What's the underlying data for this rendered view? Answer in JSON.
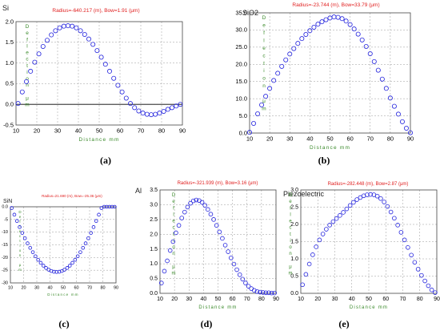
{
  "captions": [
    "(a)",
    "(b)",
    "(c)",
    "(d)",
    "(e)"
  ],
  "chart_data": [
    {
      "type": "scatter",
      "title": "Si",
      "subtitle": "Radius=-640.217 (m), Bow=1.91 (μm)",
      "xlabel": "Distance mm",
      "ylabel": "Deflection μm",
      "xlim": [
        10,
        90
      ],
      "ylim": [
        -0.5,
        2.0
      ],
      "xticks": [
        10,
        20,
        30,
        40,
        50,
        60,
        70,
        80,
        90
      ],
      "yticks": [
        -0.5,
        0.0,
        0.5,
        1.0,
        1.5,
        2.0
      ],
      "ytick_labels": [
        "-0.5",
        "0.0",
        "0.5",
        "1.0",
        "1.5",
        "2.0"
      ],
      "zero_line": true,
      "grid": true,
      "series": [
        {
          "color": "#2222dd",
          "x": [
            11,
            13,
            15,
            17,
            19,
            21,
            23,
            25,
            27,
            29,
            31,
            33,
            35,
            37,
            39,
            41,
            43,
            45,
            47,
            49,
            51,
            53,
            55,
            57,
            59,
            61,
            63,
            65,
            67,
            69,
            71,
            73,
            75,
            77,
            79,
            81,
            83,
            85,
            87,
            89
          ],
          "y": [
            0.02,
            0.3,
            0.55,
            0.8,
            1.02,
            1.22,
            1.4,
            1.55,
            1.68,
            1.78,
            1.85,
            1.89,
            1.9,
            1.89,
            1.85,
            1.78,
            1.69,
            1.58,
            1.45,
            1.3,
            1.14,
            0.97,
            0.8,
            0.63,
            0.46,
            0.3,
            0.15,
            0.02,
            -0.08,
            -0.16,
            -0.21,
            -0.24,
            -0.25,
            -0.24,
            -0.21,
            -0.17,
            -0.12,
            -0.08,
            -0.04,
            0.0
          ]
        }
      ]
    },
    {
      "type": "scatter",
      "title": "SiO2",
      "subtitle": "Radius=-23.744 (m), Bow=33.79 (μm)",
      "xlabel": "Distance mm",
      "ylabel": "Deflection μm",
      "xlim": [
        10,
        90
      ],
      "ylim": [
        0,
        35
      ],
      "xticks": [
        10,
        20,
        30,
        40,
        50,
        60,
        70,
        80,
        90
      ],
      "yticks": [
        0,
        5,
        10,
        15,
        20,
        25,
        30,
        35
      ],
      "ytick_labels": [
        "0.0",
        "5.0",
        "10.0",
        "15.0",
        "20.0",
        "25.0",
        "30.0",
        "35.0"
      ],
      "zero_line": false,
      "grid": true,
      "series": [
        {
          "color": "#2222dd",
          "x": [
            10,
            12,
            14,
            16,
            18,
            20,
            22,
            24,
            26,
            28,
            30,
            32,
            34,
            36,
            38,
            40,
            42,
            44,
            46,
            48,
            50,
            52,
            54,
            56,
            58,
            60,
            62,
            64,
            66,
            68,
            70,
            72,
            74,
            76,
            78,
            80,
            82,
            84,
            86,
            88,
            90
          ],
          "y": [
            0.2,
            2.8,
            5.6,
            8.2,
            10.7,
            13.0,
            15.3,
            17.4,
            19.4,
            21.3,
            23.0,
            24.6,
            26.1,
            27.5,
            28.7,
            29.8,
            30.8,
            31.7,
            32.4,
            33.0,
            33.5,
            33.8,
            33.7,
            33.3,
            32.6,
            31.6,
            30.3,
            28.8,
            27.1,
            25.2,
            23.1,
            20.8,
            18.3,
            15.7,
            13.0,
            10.2,
            7.8,
            5.5,
            3.3,
            1.4,
            0.1
          ]
        }
      ]
    },
    {
      "type": "scatter",
      "title": "SiN",
      "subtitle": "Radius=21.690 (m), Bow=-25.36 (μm)",
      "xlabel": "Distance mm",
      "ylabel": "Deflection μm",
      "xlim": [
        10,
        90
      ],
      "ylim": [
        -30,
        0
      ],
      "xticks": [
        10,
        20,
        30,
        40,
        50,
        60,
        70,
        80,
        90
      ],
      "yticks": [
        -30,
        -25,
        -20,
        -15,
        -10,
        -5,
        0
      ],
      "ytick_labels": [
        "-30",
        "-25",
        "-20",
        "-15",
        "-10",
        "-5",
        "0.0"
      ],
      "zero_line": false,
      "grid": true,
      "series": [
        {
          "color": "#2222dd",
          "x": [
            11,
            13,
            15,
            17,
            19,
            21,
            23,
            25,
            27,
            29,
            31,
            33,
            35,
            37,
            39,
            41,
            43,
            45,
            47,
            49,
            51,
            53,
            55,
            57,
            59,
            61,
            63,
            65,
            67,
            69,
            71,
            73,
            75,
            77,
            79,
            81,
            83,
            85,
            87,
            89
          ],
          "y": [
            -0.5,
            -3.1,
            -5.6,
            -8.0,
            -10.3,
            -12.4,
            -14.4,
            -16.2,
            -17.9,
            -19.5,
            -20.9,
            -22.1,
            -23.2,
            -24.1,
            -24.8,
            -25.3,
            -25.6,
            -25.7,
            -25.6,
            -25.3,
            -24.8,
            -24.1,
            -23.2,
            -22.1,
            -20.9,
            -19.5,
            -17.9,
            -16.2,
            -14.4,
            -12.4,
            -10.3,
            -8.0,
            -5.6,
            -3.1,
            -0.5,
            0,
            0,
            0,
            0,
            0
          ]
        }
      ]
    },
    {
      "type": "scatter",
      "title": "Al",
      "subtitle": "Radius=-321.939 (m), Bow=3.16 (μm)",
      "xlabel": "Distance mm",
      "ylabel": "Deflection μm",
      "xlim": [
        10,
        90
      ],
      "ylim": [
        0,
        3.5
      ],
      "xticks": [
        10,
        20,
        30,
        40,
        50,
        60,
        70,
        80,
        90
      ],
      "yticks": [
        0,
        0.5,
        1.0,
        1.5,
        2.0,
        2.5,
        3.0,
        3.5
      ],
      "ytick_labels": [
        "0.0",
        "0.5",
        "1.0",
        "1.5",
        "2.0",
        "2.5",
        "3.0",
        "3.5"
      ],
      "zero_line": false,
      "grid": true,
      "series": [
        {
          "color": "#2222dd",
          "x": [
            11,
            13,
            15,
            17,
            19,
            21,
            23,
            25,
            27,
            29,
            31,
            33,
            35,
            37,
            39,
            41,
            43,
            45,
            47,
            49,
            51,
            53,
            55,
            57,
            59,
            61,
            63,
            65,
            67,
            69,
            71,
            73,
            75,
            77,
            79,
            81,
            83,
            85,
            87,
            89
          ],
          "y": [
            0.35,
            0.75,
            1.1,
            1.45,
            1.75,
            2.05,
            2.3,
            2.55,
            2.75,
            2.92,
            3.05,
            3.13,
            3.16,
            3.14,
            3.08,
            2.98,
            2.84,
            2.68,
            2.5,
            2.3,
            2.08,
            1.86,
            1.63,
            1.41,
            1.2,
            0.99,
            0.8,
            0.63,
            0.48,
            0.35,
            0.24,
            0.16,
            0.1,
            0.06,
            0.04,
            0.03,
            0.02,
            0.02,
            0.01,
            0.01
          ]
        }
      ]
    },
    {
      "type": "scatter",
      "title": "Piezoelectric",
      "subtitle": "Radius=-282.448 (m), Bow=2.87 (μm)",
      "xlabel": "Distance mm",
      "ylabel": "Deflection μm",
      "xlim": [
        10,
        90
      ],
      "ylim": [
        0,
        3.0
      ],
      "xticks": [
        10,
        20,
        30,
        40,
        50,
        60,
        70,
        80,
        90
      ],
      "yticks": [
        0,
        0.5,
        1.0,
        1.5,
        2.0,
        2.5,
        3.0
      ],
      "ytick_labels": [
        "0.0",
        "0.5",
        "1.0",
        "1.5",
        "2.0",
        "2.5",
        "3.0"
      ],
      "zero_line": false,
      "grid": true,
      "series": [
        {
          "color": "#2222dd",
          "x": [
            11,
            13,
            15,
            17,
            19,
            21,
            23,
            25,
            27,
            29,
            31,
            33,
            35,
            37,
            39,
            41,
            43,
            45,
            47,
            49,
            51,
            53,
            55,
            57,
            59,
            61,
            63,
            65,
            67,
            69,
            71,
            73,
            75,
            77,
            79,
            81,
            83,
            85,
            87,
            89
          ],
          "y": [
            0.25,
            0.55,
            0.85,
            1.12,
            1.35,
            1.55,
            1.72,
            1.86,
            1.98,
            2.08,
            2.17,
            2.26,
            2.35,
            2.45,
            2.55,
            2.64,
            2.72,
            2.78,
            2.83,
            2.86,
            2.87,
            2.86,
            2.82,
            2.75,
            2.65,
            2.52,
            2.36,
            2.18,
            1.98,
            1.77,
            1.55,
            1.33,
            1.11,
            0.9,
            0.7,
            0.52,
            0.36,
            0.22,
            0.1,
            0.02
          ]
        }
      ]
    }
  ]
}
